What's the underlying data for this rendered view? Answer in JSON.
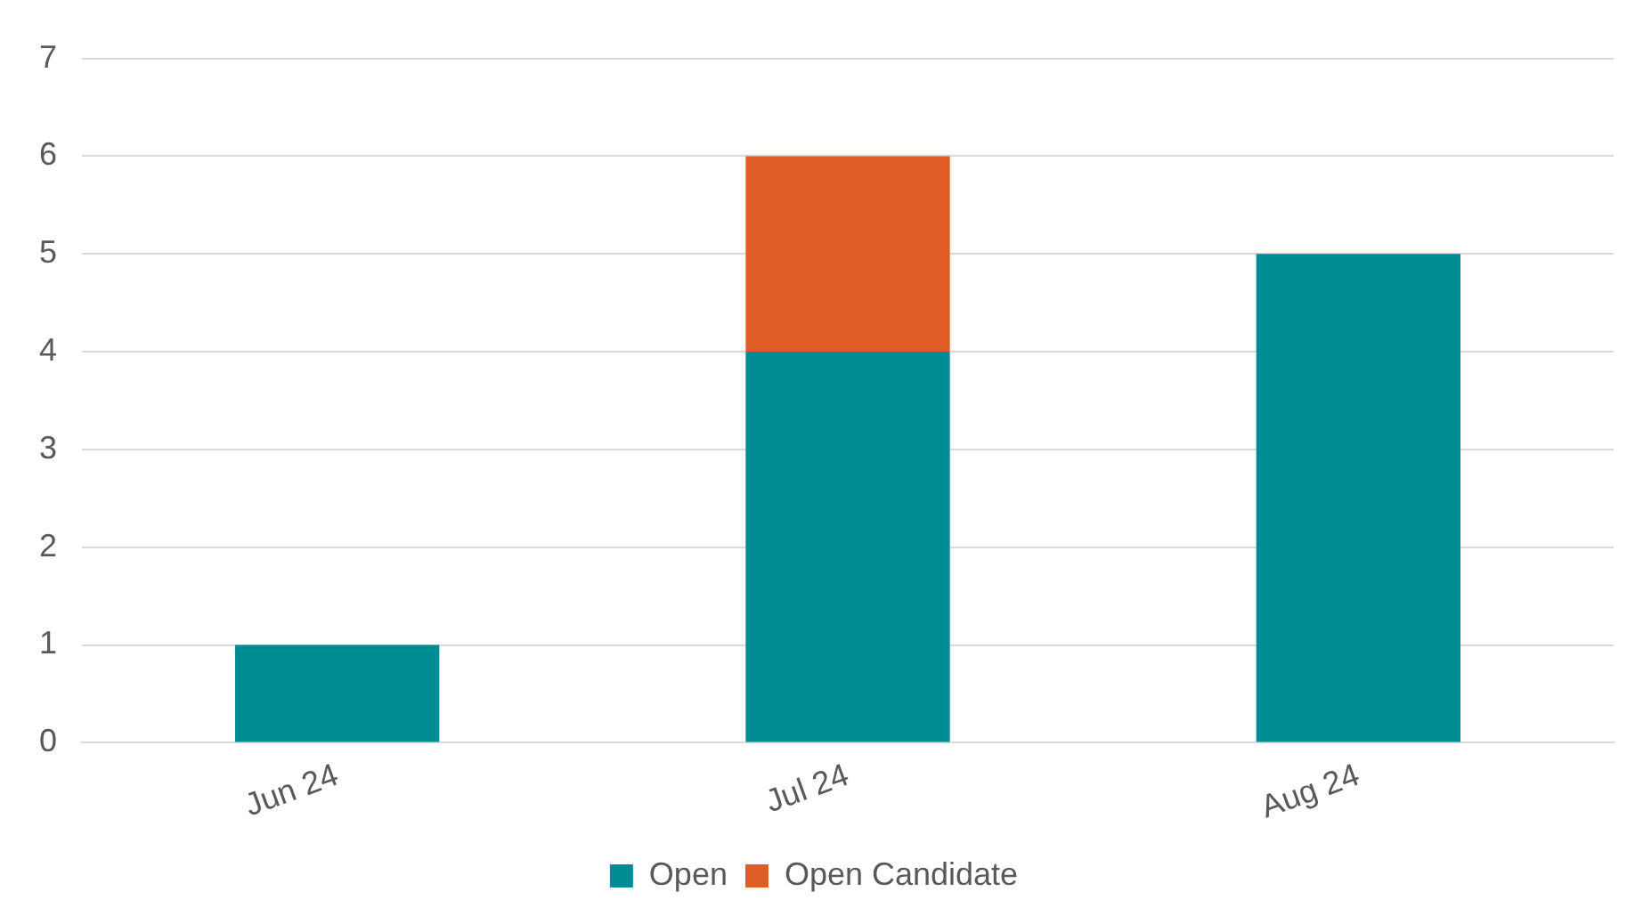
{
  "chart_data": {
    "type": "bar",
    "stacked": true,
    "categories": [
      "Jun 24",
      "Jul 24",
      "Aug 24"
    ],
    "series": [
      {
        "name": "Open",
        "color": "#008c95",
        "values": [
          1,
          4,
          5
        ]
      },
      {
        "name": "Open Candidate",
        "color": "#e05c26",
        "values": [
          null,
          2,
          null
        ]
      }
    ],
    "ylim": [
      0,
      7
    ],
    "yticks": [
      0,
      1,
      2,
      3,
      4,
      5,
      6,
      7
    ],
    "grid": "y",
    "legend": "bottom"
  }
}
